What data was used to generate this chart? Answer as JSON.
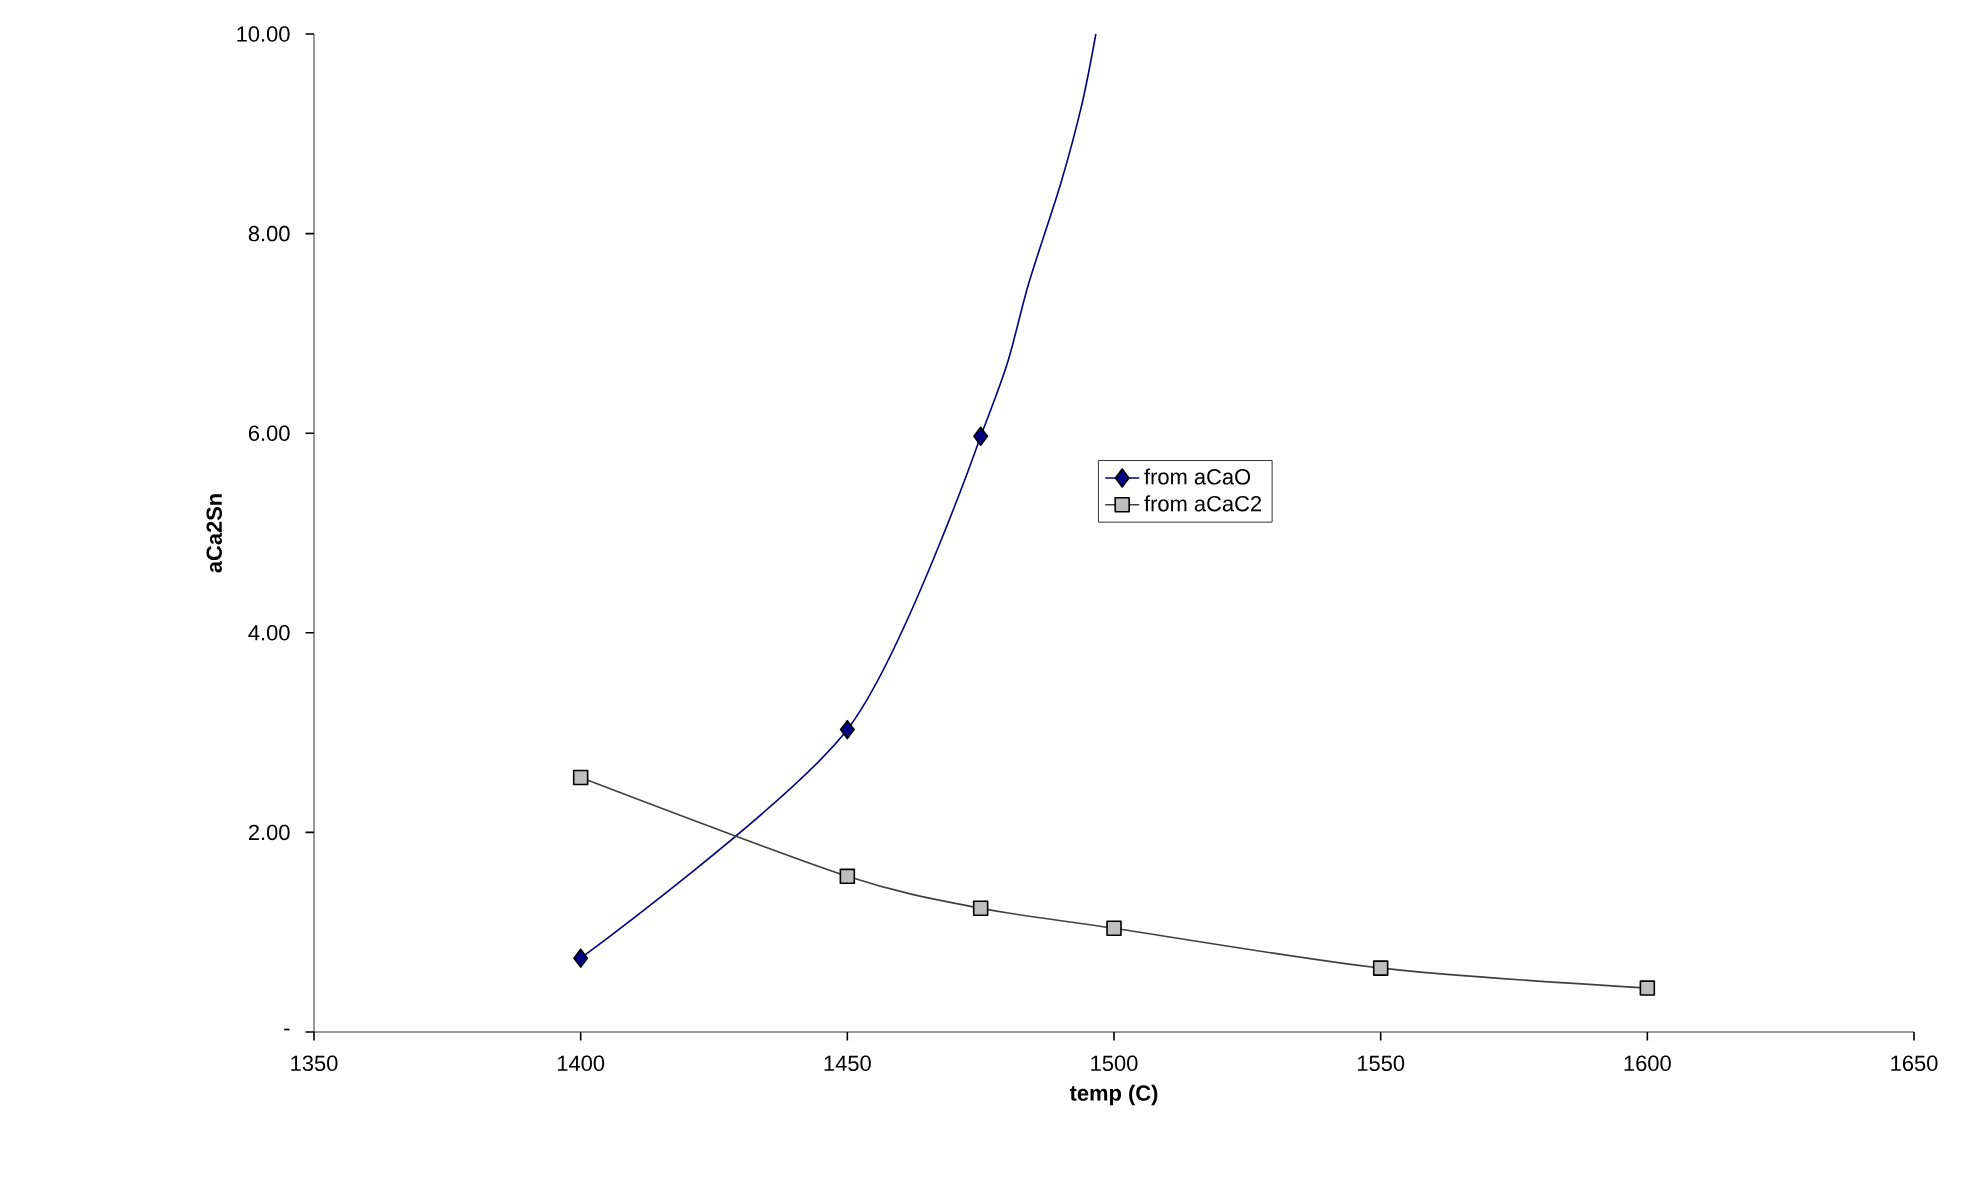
{
  "chart_data": {
    "type": "line",
    "xlabel": "temp (C)",
    "ylabel": "aCa2Sn",
    "xlim": [
      1350,
      1650
    ],
    "xticks": [
      1350,
      1400,
      1450,
      1500,
      1550,
      1600,
      1650
    ],
    "ylim": [
      0,
      10
    ],
    "yticks": [
      {
        "value": 0,
        "label": "-"
      },
      {
        "value": 2,
        "label": "2.00"
      },
      {
        "value": 4,
        "label": "4.00"
      },
      {
        "value": 6,
        "label": "6.00"
      },
      {
        "value": 8,
        "label": "8.00"
      },
      {
        "value": 10,
        "label": "10.00"
      }
    ],
    "grid": false,
    "legend": "right",
    "series": [
      {
        "name": "from aCaO",
        "color": "#000080",
        "marker": "diamond",
        "x": [
          1400,
          1450,
          1475
        ],
        "values": [
          0.74,
          3.03,
          5.97
        ]
      },
      {
        "color": "#000080",
        "marker": "none",
        "x": [
          1475,
          1480,
          1484,
          1490,
          1494,
          1496.6
        ],
        "values": [
          5.97,
          6.7,
          7.5,
          8.5,
          9.3,
          10
        ]
      },
      {
        "name": "from aCaC2",
        "color": "#404040",
        "marker": "square",
        "x": [
          1400,
          1450,
          1475,
          1500,
          1550,
          1600
        ],
        "values": [
          2.55,
          1.56,
          1.24,
          1.04,
          0.64,
          0.44
        ]
      }
    ]
  }
}
